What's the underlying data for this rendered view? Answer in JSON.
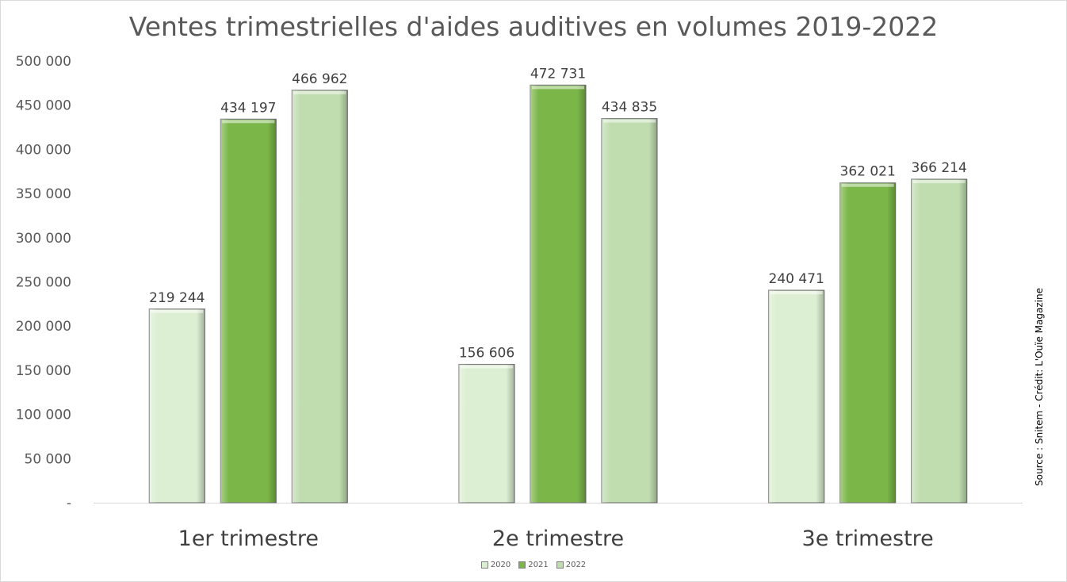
{
  "chart_data": {
    "type": "bar",
    "title": "Ventes trimestrielles d'aides auditives en volumes 2019-2022",
    "categories": [
      "1er trimestre",
      "2e trimestre",
      "3e trimestre"
    ],
    "series": [
      {
        "name": "2020",
        "values": [
          219244,
          156606,
          240471
        ],
        "labels": [
          "219 244",
          "156 606",
          "240 471"
        ],
        "color": "#dcefd2"
      },
      {
        "name": "2021",
        "values": [
          434197,
          472731,
          362021
        ],
        "labels": [
          "434 197",
          "472 731",
          "362 021"
        ],
        "color": "#7ab648"
      },
      {
        "name": "2022",
        "values": [
          466962,
          434835,
          366214
        ],
        "labels": [
          "466 962",
          "434 835",
          "366 214"
        ],
        "color": "#c0ddb0"
      }
    ],
    "ylim": [
      0,
      500000
    ],
    "yticks": [
      0,
      50000,
      100000,
      150000,
      200000,
      250000,
      300000,
      350000,
      400000,
      450000,
      500000
    ],
    "ytick_labels": [
      "-",
      "50 000",
      "100 000",
      "150 000",
      "200 000",
      "250 000",
      "300 000",
      "350 000",
      "400 000",
      "450 000",
      "500 000"
    ],
    "grid": false,
    "legend_position": "bottom",
    "source_note": "Source : Snitem - Crédit: L'Ouïe Magazine"
  }
}
